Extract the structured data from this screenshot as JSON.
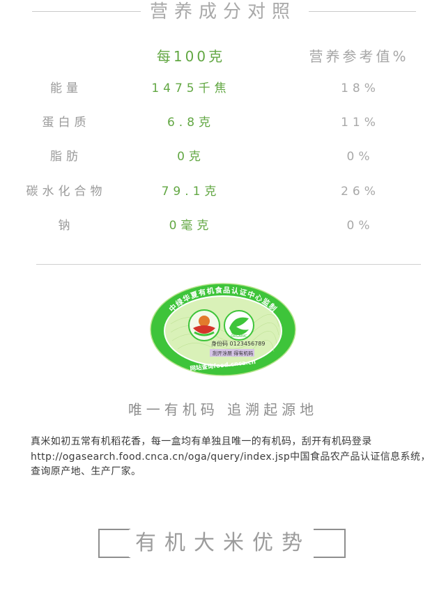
{
  "header": {
    "title": "营养成分对照"
  },
  "table": {
    "col_per100": "每100克",
    "col_nrv": "营养参考值%",
    "rows": [
      {
        "name": "能量",
        "value": "1475千焦",
        "nrv": "18%"
      },
      {
        "name": "蛋白质",
        "value": "6.8克",
        "nrv": "11%"
      },
      {
        "name": "脂肪",
        "value": "0克",
        "nrv": "0%"
      },
      {
        "name": "碳水化合物",
        "value": "79.1克",
        "nrv": "26%"
      },
      {
        "name": "钠",
        "value": "0毫克",
        "nrv": "0%"
      }
    ]
  },
  "seal": {
    "ring_text": "中绿华夏有机食品认证中心监制",
    "code_label": "身份码 0123456789",
    "scratch_label": "刮开涂层  得有机码",
    "website": "网站查询food.cnca.cn",
    "logo_text": "ORGANIC",
    "colors": {
      "green": "#3ec43a",
      "light_green": "#c9ec9a",
      "red": "#d4342a",
      "orange": "#e27a2c"
    }
  },
  "caption": "唯一有机码  追溯起源地",
  "description": "真米如初五常有机稻花香，每一盒均有单独且唯一的有机码，刮开有机码登录http://ogasearch.food.cnca.cn/oga/query/index.jsp中国食品农产品认证信息系统，查询原产地、生产厂家。",
  "section_title": "有机大米优势",
  "colors": {
    "accent_green": "#62a743",
    "text_gray": "#9a9a9a"
  }
}
